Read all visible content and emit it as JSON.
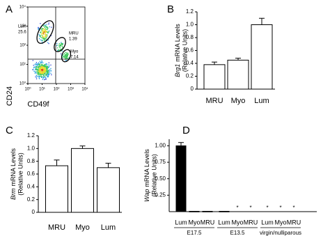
{
  "chart_data": [
    {
      "type": "scatter",
      "panel": "A",
      "xlabel": "CD49f",
      "ylabel": "CD24",
      "log": true,
      "xlim": [
        1,
        10000
      ],
      "ylim": [
        1,
        10000
      ],
      "xticks": [
        {
          "value": 1,
          "label": "10⁰"
        },
        {
          "value": 10,
          "label": "10¹"
        },
        {
          "value": 100,
          "label": "10²"
        },
        {
          "value": 1000,
          "label": "10³"
        },
        {
          "value": 10000,
          "label": "10⁴"
        }
      ],
      "yticks": [
        {
          "value": 1,
          "label": "10⁰"
        },
        {
          "value": 10,
          "label": "10¹"
        },
        {
          "value": 100,
          "label": "10²"
        },
        {
          "value": 1000,
          "label": "10³"
        },
        {
          "value": 10000,
          "label": "10⁴"
        }
      ],
      "gates": [
        {
          "name": "Lum",
          "value": 25.6
        },
        {
          "name": "MRU",
          "value": 1.39
        },
        {
          "name": "Myo",
          "value": 7.14
        }
      ]
    },
    {
      "type": "bar",
      "panel": "B",
      "gene": "Brg1",
      "ylabel": "mRNA Levels",
      "ylabel_units": "(Relative Units)",
      "categories": [
        "MRU",
        "Myo",
        "Lum"
      ],
      "values": [
        0.38,
        0.45,
        1.0
      ],
      "errors": [
        0.04,
        0.03,
        0.1
      ],
      "color": "#ffffff",
      "ylim": [
        0,
        1.2
      ],
      "yticks": [
        0,
        0.2,
        0.4,
        0.6,
        0.8,
        {
          "value": 1,
          "label": "1.0"
        },
        1.2
      ]
    },
    {
      "type": "bar",
      "panel": "C",
      "gene": "Brm",
      "ylabel": "mRNA Levels",
      "ylabel_units": "(Relative Units)",
      "categories": [
        "MRU",
        "Myo",
        "Lum"
      ],
      "values": [
        0.73,
        1.0,
        0.7
      ],
      "errors": [
        0.09,
        0.04,
        0.07
      ],
      "color": "#ffffff",
      "ylim": [
        0,
        1.2
      ],
      "yticks": [
        0,
        0.2,
        0.4,
        0.6,
        0.8,
        {
          "value": 1,
          "label": "1.0"
        },
        1.2
      ]
    },
    {
      "type": "bar",
      "panel": "D",
      "gene": "Wap",
      "ylabel": "mRNA Levels",
      "ylabel_units": "(Relative Units)",
      "categories": [
        "Lum",
        "Myo",
        "MRU",
        "Lum",
        "Myo",
        "MRU",
        "Lum",
        "Myo",
        "MRU"
      ],
      "values": [
        1.0,
        0.005,
        0.005,
        0.005,
        null,
        null,
        null,
        null,
        null
      ],
      "errors": [
        0.05,
        null,
        null,
        null,
        null,
        null,
        null,
        null,
        null
      ],
      "color": "#000000",
      "groups": [
        "E17.5",
        "E13.5",
        "virgin/nulliparous"
      ],
      "annotations": [
        {
          "category": 4,
          "text": "*"
        },
        {
          "category": 5,
          "text": "*"
        },
        {
          "category": 6,
          "text": "*"
        },
        {
          "category": 7,
          "text": "*"
        },
        {
          "category": 8,
          "text": "*"
        }
      ],
      "ylim": [
        0,
        1.1
      ],
      "yticks": [
        0.25,
        {
          "value": 0.5,
          "label": "0.50"
        },
        {
          "value": 0.75,
          "label": "0.75"
        },
        {
          "value": 1,
          "label": "1.00"
        }
      ]
    }
  ]
}
